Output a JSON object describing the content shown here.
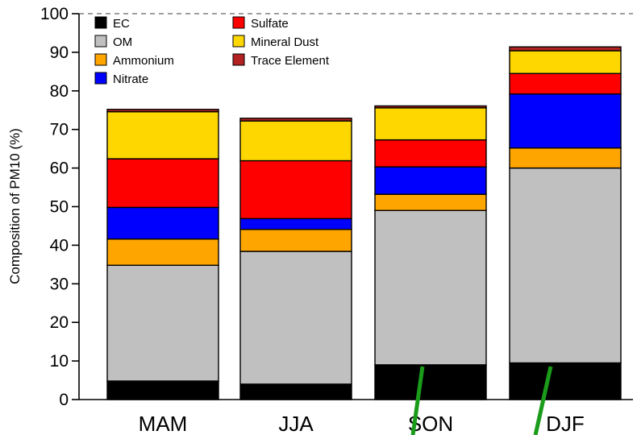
{
  "chart_data": {
    "type": "bar",
    "stacked": true,
    "categories": [
      "MAM",
      "JJA",
      "SON",
      "DJF"
    ],
    "series": [
      {
        "name": "EC",
        "color": "#000000",
        "values": [
          4.8,
          4.0,
          9.0,
          9.5
        ]
      },
      {
        "name": "OM",
        "color": "#c0c0c0",
        "values": [
          30.0,
          34.4,
          40.0,
          50.5
        ]
      },
      {
        "name": "Ammonium",
        "color": "#ffa500",
        "values": [
          6.8,
          5.7,
          4.2,
          5.2
        ]
      },
      {
        "name": "Nitrate",
        "color": "#0000ff",
        "values": [
          8.2,
          2.8,
          7.1,
          14.0
        ]
      },
      {
        "name": "Sulfate",
        "color": "#ff0000",
        "values": [
          12.6,
          15.0,
          7.0,
          5.3
        ]
      },
      {
        "name": "Mineral Dust",
        "color": "#ffd700",
        "values": [
          12.2,
          10.3,
          8.3,
          5.9
        ]
      },
      {
        "name": "Trace Element",
        "color": "#b22222",
        "values": [
          0.6,
          0.7,
          0.5,
          1.0
        ]
      }
    ],
    "ylabel": "Composition of PM10 (%)",
    "xlabel": "",
    "ylim": [
      0,
      100
    ],
    "yticks": [
      0,
      10,
      20,
      30,
      40,
      50,
      60,
      70,
      80,
      90,
      100
    ],
    "reference_line": 100,
    "legend": "top-left, two columns",
    "grid": false
  }
}
